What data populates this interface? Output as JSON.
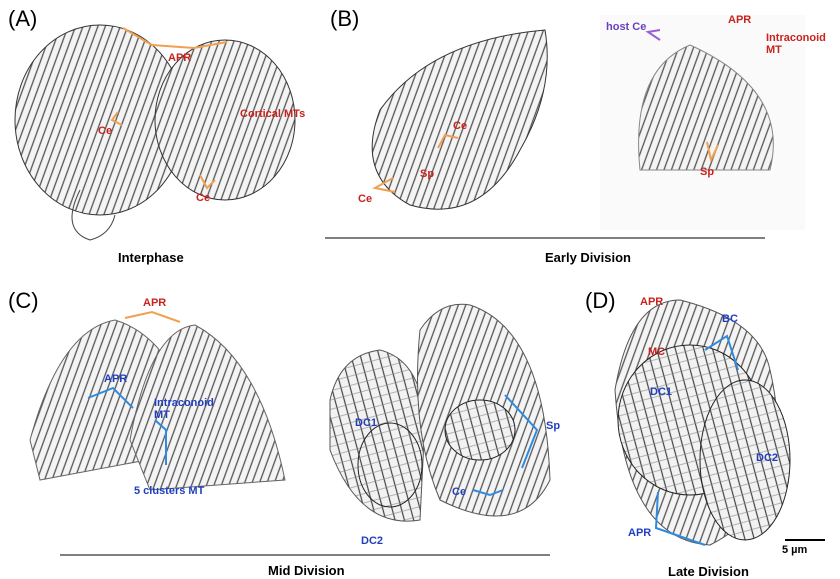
{
  "panels": [
    {
      "label": "(A)",
      "caption": "Interphase",
      "annotations": [
        {
          "text": "APR",
          "color": "#c8231e"
        },
        {
          "text": "Cortical MTs",
          "color": "#c8231e"
        },
        {
          "text": "Ce",
          "color": "#c8231e"
        },
        {
          "text": "Ce",
          "color": "#c8231e"
        }
      ]
    },
    {
      "label": "(B)",
      "caption": "Early Division",
      "annotations": [
        {
          "text": "Ce",
          "color": "#c8231e"
        },
        {
          "text": "Sp",
          "color": "#c8231e"
        },
        {
          "text": "Ce",
          "color": "#c8231e"
        },
        {
          "text": "host Ce",
          "color": "#6a3fbf"
        },
        {
          "text": "APR",
          "color": "#c8231e"
        },
        {
          "text": "Intraconoid MT",
          "color": "#c8231e"
        },
        {
          "text": "Sp",
          "color": "#c8231e"
        }
      ]
    },
    {
      "label": "(C)",
      "caption": "Mid Division",
      "annotations": [
        {
          "text": "APR",
          "color": "#c8231e"
        },
        {
          "text": "APR",
          "color": "#1f3fbf"
        },
        {
          "text": "Intraconoid MT",
          "color": "#1f3fbf"
        },
        {
          "text": "5 clusters MT",
          "color": "#1f3fbf"
        },
        {
          "text": "DC1",
          "color": "#1f3fbf"
        },
        {
          "text": "Sp",
          "color": "#1f3fbf"
        },
        {
          "text": "Ce",
          "color": "#1f3fbf"
        },
        {
          "text": "DC2",
          "color": "#1f3fbf"
        }
      ]
    },
    {
      "label": "(D)",
      "caption": "Late Division",
      "annotations": [
        {
          "text": "APR",
          "color": "#c8231e"
        },
        {
          "text": "BC",
          "color": "#1f3fbf"
        },
        {
          "text": "MC",
          "color": "#c8231e"
        },
        {
          "text": "DC1",
          "color": "#1f3fbf"
        },
        {
          "text": "DC2",
          "color": "#1f3fbf"
        },
        {
          "text": "APR",
          "color": "#1f3fbf"
        },
        {
          "text": "5 µm",
          "color": "#000000"
        }
      ]
    }
  ]
}
